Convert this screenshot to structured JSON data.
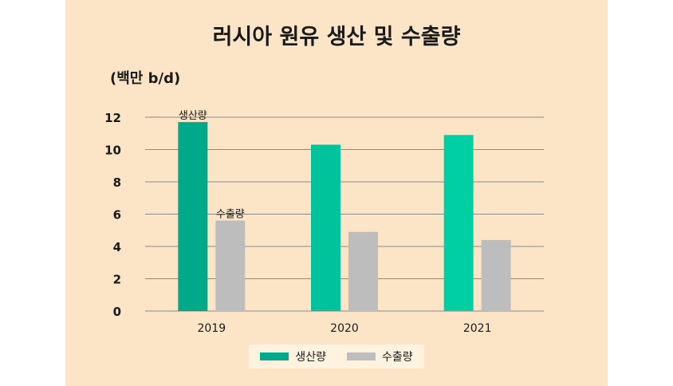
{
  "colors": {
    "panel_bg": "#fce5c7",
    "grid": "#8a8a8a",
    "production_2019": "#00a98a",
    "production": "#00c29b",
    "production_2021": "#00cfa3",
    "export": "#bdbdbd"
  },
  "chart_data": {
    "type": "bar",
    "title": "러시아 원유 생산 및 수출량",
    "ylabel": "(백만 b/d)",
    "xlabel": "",
    "categories": [
      "2019",
      "2020",
      "2021"
    ],
    "series": [
      {
        "name": "생산량",
        "values": [
          11.7,
          10.3,
          10.9
        ]
      },
      {
        "name": "수출량",
        "values": [
          5.6,
          4.9,
          4.4
        ]
      }
    ],
    "ylim": [
      0,
      12
    ],
    "yticks": [
      "0",
      "2",
      "4",
      "6",
      "8",
      "10",
      "12"
    ],
    "grid": true,
    "legend_position": "bottom-center",
    "annotations": [
      {
        "text": "생산량",
        "category": "2019",
        "series": 0
      },
      {
        "text": "수출량",
        "category": "2019",
        "series": 1
      }
    ]
  }
}
